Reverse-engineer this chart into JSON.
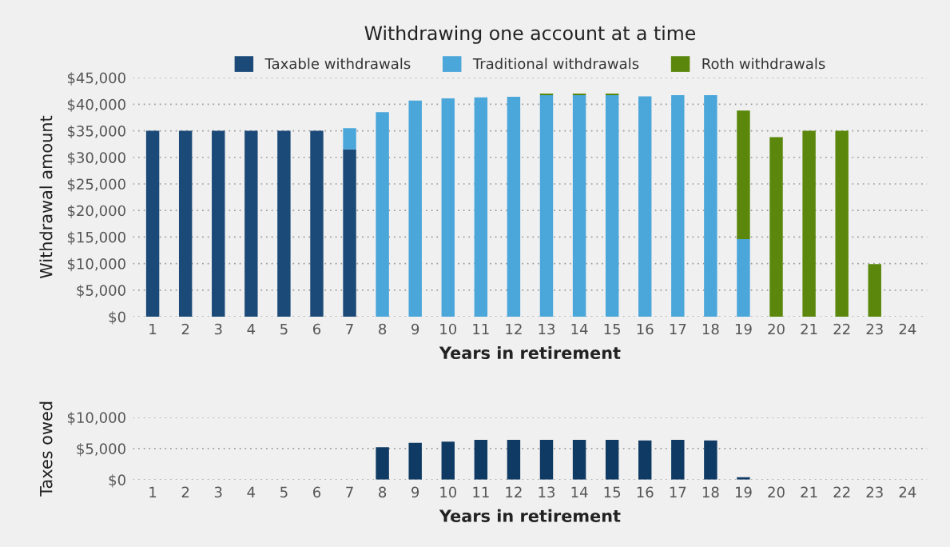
{
  "chart_data": [
    {
      "type": "bar",
      "title": "Withdrawing one account at a time",
      "xlabel": "Years in retirement",
      "ylabel": "Withdrawal amount",
      "categories": [
        "1",
        "2",
        "3",
        "4",
        "5",
        "6",
        "7",
        "8",
        "9",
        "10",
        "11",
        "12",
        "13",
        "14",
        "15",
        "16",
        "17",
        "18",
        "19",
        "20",
        "21",
        "22",
        "23",
        "24"
      ],
      "stacked": true,
      "legend": "top",
      "grid": "y",
      "ylim": [
        0,
        45000
      ],
      "yticks": [
        {
          "value": 0,
          "label": "$0"
        },
        {
          "value": 5000,
          "label": "$5,000"
        },
        {
          "value": 10000,
          "label": "$10,000"
        },
        {
          "value": 15000,
          "label": "$15,000"
        },
        {
          "value": 20000,
          "label": "$20,000"
        },
        {
          "value": 25000,
          "label": "$25,000"
        },
        {
          "value": 30000,
          "label": "$30,000"
        },
        {
          "value": 35000,
          "label": "$35,000"
        },
        {
          "value": 40000,
          "label": "$40,000"
        },
        {
          "value": 45000,
          "label": "$45,000"
        }
      ],
      "series": [
        {
          "name": "Taxable withdrawals",
          "color": "#1c4a78",
          "values": [
            35000,
            35000,
            35000,
            35000,
            35000,
            35000,
            31500,
            0,
            0,
            0,
            0,
            0,
            0,
            0,
            0,
            0,
            0,
            0,
            0,
            0,
            0,
            0,
            0,
            0
          ]
        },
        {
          "name": "Traditional withdrawals",
          "color": "#4ba6da",
          "values": [
            0,
            0,
            0,
            0,
            0,
            0,
            4000,
            38500,
            40700,
            41100,
            41300,
            41400,
            41700,
            41700,
            41700,
            41500,
            41700,
            41700,
            14600,
            0,
            0,
            0,
            0,
            0
          ]
        },
        {
          "name": "Roth withdrawals",
          "color": "#5a870c",
          "values": [
            0,
            0,
            0,
            0,
            0,
            0,
            0,
            0,
            0,
            0,
            0,
            0,
            300,
            300,
            300,
            0,
            0,
            0,
            24200,
            33800,
            35000,
            35000,
            9900,
            0
          ]
        }
      ]
    },
    {
      "type": "bar",
      "xlabel": "Years in retirement",
      "ylabel": "Taxes owed",
      "categories": [
        "1",
        "2",
        "3",
        "4",
        "5",
        "6",
        "7",
        "8",
        "9",
        "10",
        "11",
        "12",
        "13",
        "14",
        "15",
        "16",
        "17",
        "18",
        "19",
        "20",
        "21",
        "22",
        "23",
        "24"
      ],
      "grid": "y",
      "ylim": [
        0,
        10000
      ],
      "yticks": [
        {
          "value": 0,
          "label": "$0"
        },
        {
          "value": 5000,
          "label": "$5,000"
        },
        {
          "value": 10000,
          "label": "$10,000"
        }
      ],
      "series": [
        {
          "color": "#0f3a63",
          "values": [
            0,
            0,
            0,
            0,
            0,
            0,
            0,
            5200,
            5900,
            6100,
            6400,
            6400,
            6400,
            6400,
            6400,
            6300,
            6400,
            6300,
            400,
            0,
            0,
            0,
            0,
            0
          ]
        }
      ]
    }
  ]
}
